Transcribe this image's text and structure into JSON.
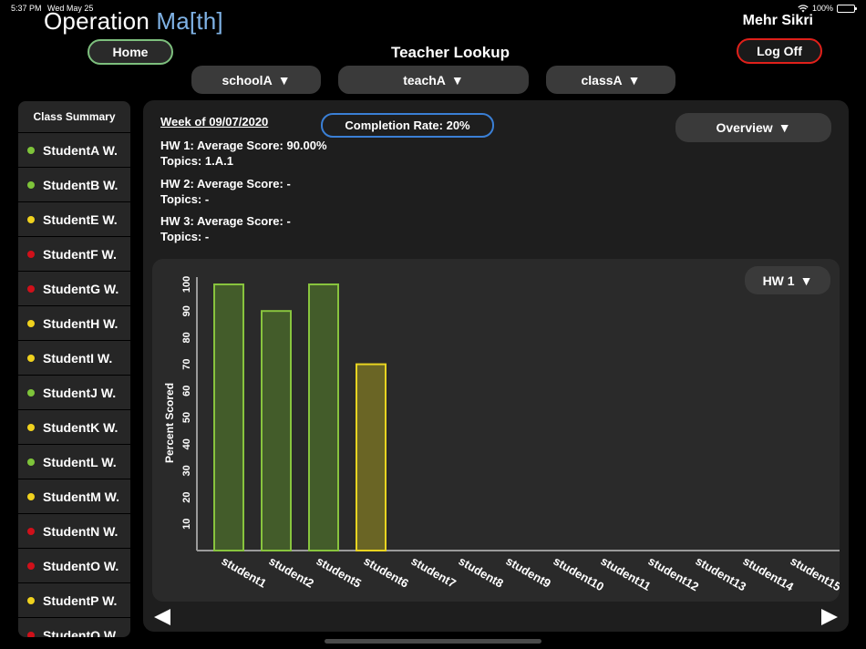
{
  "status_bar": {
    "time": "5:37 PM",
    "date": "Wed May 25",
    "battery": "100%",
    "battery_level": 1.0
  },
  "header": {
    "logo_main": "Operation ",
    "logo_accent": "Ma[th]",
    "home_label": "Home",
    "page_title": "Teacher Lookup",
    "user_name": "Mehr Sikri",
    "logoff_label": "Log Off"
  },
  "filters": {
    "school": "schoolA",
    "teacher": "teachA",
    "class": "classA",
    "arrow": "▼"
  },
  "sidebar": {
    "title": "Class Summary",
    "students": [
      {
        "name": "StudentA W.",
        "status_color": "#7ec43a"
      },
      {
        "name": "StudentB W.",
        "status_color": "#7ec43a"
      },
      {
        "name": "StudentE W.",
        "status_color": "#f0d21e"
      },
      {
        "name": "StudentF W.",
        "status_color": "#d0101a"
      },
      {
        "name": "StudentG W.",
        "status_color": "#d0101a"
      },
      {
        "name": "StudentH W.",
        "status_color": "#f0d21e"
      },
      {
        "name": "StudentI W.",
        "status_color": "#f0d21e"
      },
      {
        "name": "StudentJ W.",
        "status_color": "#7ec43a"
      },
      {
        "name": "StudentK W.",
        "status_color": "#f0d21e"
      },
      {
        "name": "StudentL W.",
        "status_color": "#7ec43a"
      },
      {
        "name": "StudentM W.",
        "status_color": "#f0d21e"
      },
      {
        "name": "StudentN W.",
        "status_color": "#d0101a"
      },
      {
        "name": "StudentO W.",
        "status_color": "#d0101a"
      },
      {
        "name": "StudentP W.",
        "status_color": "#f0d21e"
      },
      {
        "name": "StudentQ W.",
        "status_color": "#d0101a"
      }
    ]
  },
  "summary": {
    "week": "Week of 09/07/2020",
    "completion_rate": "Completion Rate: 20%",
    "view_select": "Overview",
    "homeworks": [
      {
        "score_line": "HW 1: Average Score: 90.00%",
        "topics_line": "Topics: 1.A.1"
      },
      {
        "score_line": "HW 2: Average Score: -",
        "topics_line": "Topics: -"
      },
      {
        "score_line": "HW 3: Average Score: -",
        "topics_line": "Topics: -"
      }
    ]
  },
  "hw_select": "HW 1",
  "chart_data": {
    "type": "bar",
    "ylabel": "Percent Scored",
    "xlabel": "",
    "ylim": [
      0,
      100
    ],
    "yticks": [
      10,
      20,
      30,
      40,
      50,
      60,
      70,
      80,
      90,
      100
    ],
    "categories": [
      "student1",
      "student2",
      "student5",
      "student6",
      "student7",
      "student8",
      "student9",
      "student10",
      "student11",
      "student12",
      "student13",
      "student14",
      "student15"
    ],
    "values": [
      100,
      90,
      100,
      70,
      null,
      null,
      null,
      null,
      null,
      null,
      null,
      null,
      null
    ],
    "bar_colors": {
      "green_fill": "#435c2a",
      "green_stroke": "#88c43e",
      "yellow_fill": "#6a6525",
      "yellow_stroke": "#e8d421"
    },
    "bar_color_keys": [
      "green",
      "green",
      "green",
      "yellow",
      null,
      null,
      null,
      null,
      null,
      null,
      null,
      null,
      null
    ]
  },
  "colors": {
    "accent_blue": "#3a7fd5",
    "home_green": "#7dbf7d",
    "logoff_red": "#e0201a"
  }
}
